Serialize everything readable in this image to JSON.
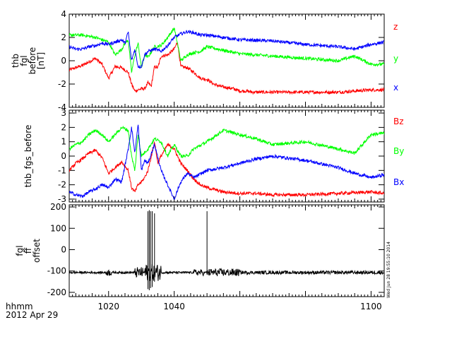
{
  "chart_data": [
    {
      "type": "line",
      "ylabel_lines": [
        "thb",
        "fgl",
        "before",
        "[nT]"
      ],
      "ylim": [
        -4,
        4
      ],
      "yticks": [
        -4,
        -2,
        0,
        2,
        4
      ],
      "xlim": [
        1008,
        1104
      ],
      "xticks": [
        1020,
        1040,
        1100
      ],
      "series": [
        {
          "name": "z",
          "color": "#ff0000",
          "x": [
            1008,
            1010,
            1012,
            1014,
            1016,
            1018,
            1020,
            1022,
            1024,
            1026,
            1027,
            1028,
            1029,
            1030,
            1031,
            1032,
            1033,
            1034,
            1035,
            1036,
            1038,
            1040,
            1041,
            1042,
            1044,
            1046,
            1048,
            1050,
            1052,
            1054,
            1056,
            1058,
            1060,
            1062,
            1064,
            1066,
            1068,
            1070,
            1080,
            1090,
            1100,
            1104
          ],
          "values": [
            -0.8,
            -0.6,
            -0.4,
            -0.1,
            0.2,
            -0.3,
            -1.5,
            -0.5,
            -0.6,
            -1.0,
            -2.0,
            -2.6,
            -2.5,
            -2.4,
            -2.4,
            -1.9,
            -2.2,
            -0.5,
            -0.6,
            0.4,
            0.5,
            1.0,
            1.6,
            -0.5,
            -0.6,
            -1.0,
            -1.5,
            -1.6,
            -2.0,
            -2.2,
            -2.3,
            -2.4,
            -2.6,
            -2.6,
            -2.7,
            -2.7,
            -2.7,
            -2.7,
            -2.7,
            -2.7,
            -2.5,
            -2.5
          ]
        },
        {
          "name": "y",
          "color": "#00ff00",
          "x": [
            1008,
            1012,
            1016,
            1018,
            1020,
            1022,
            1024,
            1025,
            1026,
            1027,
            1028,
            1029,
            1030,
            1031,
            1032,
            1034,
            1036,
            1038,
            1040,
            1041,
            1042,
            1044,
            1046,
            1048,
            1050,
            1060,
            1070,
            1080,
            1090,
            1095,
            1100,
            1104
          ],
          "values": [
            2.2,
            2.2,
            2.0,
            1.8,
            1.6,
            0.5,
            1.0,
            1.5,
            1.8,
            -1.0,
            0.5,
            1.5,
            -0.6,
            0.5,
            0.3,
            1.2,
            1.3,
            2.0,
            2.8,
            1.5,
            0.0,
            0.5,
            0.7,
            0.8,
            1.2,
            0.6,
            0.4,
            0.2,
            0.0,
            0.4,
            -0.3,
            -0.3
          ]
        },
        {
          "name": "x",
          "color": "#0000ff",
          "x": [
            1008,
            1010,
            1012,
            1014,
            1016,
            1018,
            1020,
            1022,
            1024,
            1025,
            1026,
            1027,
            1028,
            1029,
            1030,
            1031,
            1032,
            1034,
            1036,
            1038,
            1040,
            1042,
            1044,
            1046,
            1048,
            1050,
            1060,
            1070,
            1080,
            1090,
            1095,
            1100,
            1104
          ],
          "values": [
            1.2,
            1.0,
            1.0,
            1.2,
            1.3,
            1.5,
            1.4,
            1.6,
            1.8,
            1.5,
            2.5,
            0.0,
            1.0,
            -0.5,
            -0.5,
            0.5,
            0.8,
            1.0,
            0.8,
            1.3,
            2.0,
            2.3,
            2.5,
            2.4,
            2.2,
            2.2,
            1.8,
            1.7,
            1.4,
            1.2,
            1.0,
            1.4,
            1.6
          ]
        }
      ]
    },
    {
      "type": "line",
      "ylabel_lines": [
        "thb_fgs_before"
      ],
      "ylim": [
        -3.2,
        3.2
      ],
      "yticks": [
        -3,
        -2,
        -1,
        0,
        1,
        2,
        3
      ],
      "xlim": [
        1008,
        1104
      ],
      "xticks": [
        1020,
        1040,
        1100
      ],
      "series": [
        {
          "name": "Bz",
          "color": "#ff0000",
          "x": [
            1008,
            1010,
            1012,
            1014,
            1016,
            1018,
            1020,
            1022,
            1024,
            1026,
            1027,
            1028,
            1029,
            1030,
            1031,
            1032,
            1033,
            1034,
            1035,
            1036,
            1038,
            1040,
            1042,
            1044,
            1046,
            1048,
            1050,
            1055,
            1060,
            1065,
            1070,
            1080,
            1090,
            1100,
            1104
          ],
          "values": [
            -1.0,
            -0.5,
            -0.2,
            0.2,
            0.4,
            -0.1,
            -1.2,
            -0.8,
            -0.4,
            -1.0,
            -2.2,
            -2.5,
            -2.0,
            -1.8,
            -1.5,
            -1.0,
            0.0,
            1.0,
            -0.5,
            0.0,
            0.8,
            0.5,
            -0.5,
            -1.0,
            -1.6,
            -2.0,
            -2.2,
            -2.5,
            -2.6,
            -2.6,
            -2.7,
            -2.7,
            -2.6,
            -2.5,
            -2.6
          ]
        },
        {
          "name": "By",
          "color": "#00ff00",
          "x": [
            1008,
            1010,
            1012,
            1014,
            1016,
            1018,
            1020,
            1022,
            1024,
            1026,
            1027,
            1028,
            1029,
            1030,
            1032,
            1034,
            1036,
            1038,
            1040,
            1042,
            1044,
            1046,
            1050,
            1055,
            1060,
            1065,
            1070,
            1080,
            1090,
            1095,
            1100,
            1104
          ],
          "values": [
            0.5,
            0.8,
            1.0,
            1.5,
            1.8,
            1.5,
            1.0,
            1.5,
            2.0,
            1.8,
            0.0,
            -1.0,
            1.5,
            0.0,
            0.5,
            1.2,
            1.0,
            0.0,
            0.8,
            0.0,
            0.0,
            0.5,
            1.0,
            1.8,
            1.5,
            1.2,
            0.8,
            1.0,
            0.5,
            0.2,
            1.5,
            1.6
          ]
        },
        {
          "name": "Bx",
          "color": "#0000ff",
          "x": [
            1008,
            1010,
            1012,
            1014,
            1016,
            1018,
            1020,
            1022,
            1024,
            1026,
            1027,
            1028,
            1029,
            1030,
            1031,
            1032,
            1034,
            1036,
            1038,
            1040,
            1042,
            1044,
            1046,
            1050,
            1055,
            1060,
            1065,
            1070,
            1080,
            1090,
            1095,
            1100,
            1104
          ],
          "values": [
            -2.5,
            -2.7,
            -2.8,
            -2.5,
            -2.3,
            -2.0,
            -2.2,
            -1.6,
            -1.8,
            0.5,
            2.0,
            0.2,
            2.2,
            -1.0,
            -0.3,
            -0.5,
            0.8,
            -1.0,
            -2.0,
            -3.0,
            -1.8,
            -1.2,
            -1.5,
            -1.0,
            -0.8,
            -0.5,
            -0.2,
            0.0,
            -0.3,
            -0.8,
            -1.2,
            -1.5,
            -1.3
          ]
        }
      ]
    },
    {
      "type": "line",
      "ylabel_lines": [
        "fgl",
        "ff",
        "offset"
      ],
      "ylim": [
        -220,
        210
      ],
      "yticks": [
        -200,
        -100,
        0,
        100,
        200
      ],
      "xlim": [
        1008,
        1104
      ],
      "xticks": [
        1020,
        1040,
        1100
      ],
      "series": [
        {
          "name": "",
          "color": "#000000",
          "baseline": -107,
          "noise_amplitude": 5,
          "bursts": [
            {
              "start": 1019,
              "end": 1021,
              "amplitude": 15
            },
            {
              "start": 1028,
              "end": 1031,
              "amplitude": 25
            },
            {
              "start": 1031,
              "end": 1036,
              "amplitude": 40
            },
            {
              "start": 1046,
              "end": 1049,
              "amplitude": 15
            },
            {
              "start": 1050,
              "end": 1060,
              "amplitude": 18
            },
            {
              "start": 1060,
              "end": 1104,
              "amplitude": 8
            }
          ],
          "spikes": [
            {
              "x": 1032.0,
              "min": -185,
              "max": 180
            },
            {
              "x": 1032.4,
              "min": -190,
              "max": 185
            },
            {
              "x": 1032.8,
              "min": -180,
              "max": 180
            },
            {
              "x": 1033.3,
              "min": -175,
              "max": 180
            },
            {
              "x": 1034.0,
              "min": -150,
              "max": 170
            },
            {
              "x": 1050.0,
              "min": -115,
              "max": 180
            }
          ]
        }
      ]
    }
  ],
  "footer": {
    "line1": "hhmm",
    "line2": "2012 Apr 29"
  },
  "timestamp": "Wed Jun 28 19:55:10 2014"
}
